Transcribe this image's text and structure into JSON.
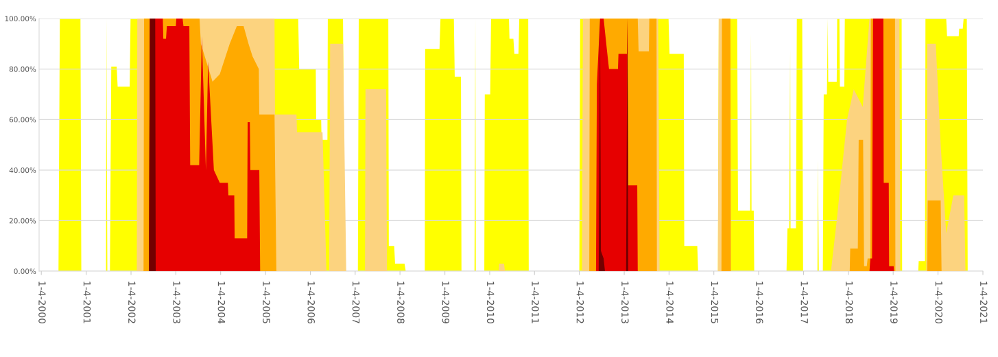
{
  "chart_data": {
    "type": "area",
    "xlim": [
      "1999-12-17",
      "2021-01-04"
    ],
    "ylim": [
      0,
      100
    ],
    "yticks": [
      {
        "value": 0,
        "label": "0.00%"
      },
      {
        "value": 20,
        "label": "20.00%"
      },
      {
        "value": 40,
        "label": "40.00%"
      },
      {
        "value": 60,
        "label": "60.00%"
      },
      {
        "value": 80,
        "label": "80.00%"
      },
      {
        "value": 100,
        "label": "100.00%"
      }
    ],
    "xticks": [
      {
        "value": "2000-01-04",
        "label": "1-4-2000"
      },
      {
        "value": "2001-01-04",
        "label": "1-4-2001"
      },
      {
        "value": "2002-01-04",
        "label": "1-4-2002"
      },
      {
        "value": "2003-01-04",
        "label": "1-4-2003"
      },
      {
        "value": "2004-01-04",
        "label": "1-4-2004"
      },
      {
        "value": "2005-01-04",
        "label": "1-4-2005"
      },
      {
        "value": "2006-01-04",
        "label": "1-4-2006"
      },
      {
        "value": "2007-01-04",
        "label": "1-4-2007"
      },
      {
        "value": "2008-01-04",
        "label": "1-4-2008"
      },
      {
        "value": "2009-01-04",
        "label": "1-4-2009"
      },
      {
        "value": "2010-01-04",
        "label": "1-4-2010"
      },
      {
        "value": "2011-01-04",
        "label": "1-4-2011"
      },
      {
        "value": "2012-01-04",
        "label": "1-4-2012"
      },
      {
        "value": "2013-01-04",
        "label": "1-4-2013"
      },
      {
        "value": "2014-01-04",
        "label": "1-4-2014"
      },
      {
        "value": "2015-01-04",
        "label": "1-4-2015"
      },
      {
        "value": "2016-01-04",
        "label": "1-4-2016"
      },
      {
        "value": "2017-01-04",
        "label": "1-4-2017"
      },
      {
        "value": "2018-01-04",
        "label": "1-4-2018"
      },
      {
        "value": "2019-01-04",
        "label": "1-4-2019"
      },
      {
        "value": "2020-01-04",
        "label": "1-4-2020"
      },
      {
        "value": "2021-01-04",
        "label": "1-4-2021"
      }
    ],
    "grid": "y",
    "legend": false,
    "series": [
      {
        "color": "#ffff00",
        "x": [
          "2000-05-23",
          "2000-06-03",
          "2000-11-18",
          "2000-11-25",
          "2001-06-14",
          "2001-06-17",
          "2001-06-25",
          "2001-07-16",
          "2001-07-27",
          "2001-09-09",
          "2001-09-17",
          "2001-12-24",
          "2001-12-31",
          "2005-09-27",
          "2005-10-05",
          "2006-02-17",
          "2006-02-20",
          "2006-04-02",
          "2006-04-05",
          "2006-05-23",
          "2006-05-26",
          "2006-09-27",
          "2006-10-12",
          "2007-01-26",
          "2007-02-02",
          "2007-10-01",
          "2007-10-05",
          "2007-11-18",
          "2007-11-25",
          "2008-02-10",
          "2008-02-20",
          "2008-07-24",
          "2008-07-27",
          "2008-11-21",
          "2008-11-29",
          "2009-03-18",
          "2009-03-25",
          "2009-05-15",
          "2009-05-19",
          "2009-09-02",
          "2009-09-09",
          "2009-09-13",
          "2009-11-21",
          "2009-11-25",
          "2010-01-08",
          "2010-01-15",
          "2010-06-10",
          "2010-06-14",
          "2010-07-16",
          "2010-07-24",
          "2010-08-26",
          "2010-09-02",
          "2010-11-14",
          "2010-11-18",
          "2012-01-04",
          "2012-01-11",
          "2013-12-31",
          "2014-01-08",
          "2014-05-04",
          "2014-05-08",
          "2014-08-22",
          "2014-08-29",
          "2015-02-06",
          "2015-02-13",
          "2015-07-13",
          "2015-07-20",
          "2015-10-27",
          "2015-11-03",
          "2015-11-07",
          "2015-11-25",
          "2015-11-29",
          "2016-08-18",
          "2016-08-26",
          "2016-09-09",
          "2016-09-17",
          "2016-09-20",
          "2016-11-03",
          "2016-11-10",
          "2016-12-24",
          "2016-12-31",
          "2017-04-27",
          "2017-05-01",
          "2017-05-08",
          "2017-06-10",
          "2017-06-17",
          "2017-07-13",
          "2017-07-20",
          "2017-07-24",
          "2017-10-01",
          "2017-10-05",
          "2017-10-23",
          "2017-10-27",
          "2017-12-02",
          "2017-12-06",
          "2019-03-14",
          "2019-03-18",
          "2019-07-27",
          "2019-07-31",
          "2019-09-20",
          "2019-09-24",
          "2020-03-11",
          "2020-03-18",
          "2020-06-21",
          "2020-06-25",
          "2020-07-24",
          "2020-07-31",
          "2020-08-26",
          "2020-09-02"
        ],
        "values": [
          0,
          100,
          100,
          0,
          0,
          100,
          0,
          0,
          81,
          81,
          73,
          73,
          100,
          100,
          80,
          80,
          60,
          60,
          52,
          52,
          100,
          100,
          0,
          0,
          100,
          100,
          10,
          10,
          3,
          3,
          0,
          0,
          88,
          88,
          100,
          100,
          77,
          77,
          0,
          0,
          100,
          0,
          0,
          70,
          70,
          100,
          100,
          92,
          92,
          86,
          86,
          100,
          100,
          0,
          0,
          100,
          100,
          86,
          86,
          10,
          10,
          0,
          0,
          100,
          100,
          24,
          24,
          94,
          24,
          24,
          0,
          0,
          17,
          17,
          88,
          17,
          17,
          100,
          100,
          0,
          0,
          44,
          0,
          0,
          70,
          70,
          100,
          75,
          75,
          100,
          100,
          73,
          73,
          100,
          100,
          0,
          0,
          4,
          4,
          100,
          100,
          93,
          93,
          96,
          96,
          100,
          100,
          0
        ]
      },
      {
        "color": "#fcd37f",
        "x": [
          "2002-02-20",
          "2002-02-24",
          "2005-03-18",
          "2005-03-22",
          "2005-09-13",
          "2005-09-17",
          "2006-04-13",
          "2006-05-15",
          "2006-06-06",
          "2006-06-14",
          "2006-09-27",
          "2006-10-23",
          "2007-03-25",
          "2007-03-29",
          "2007-09-13",
          "2007-09-20",
          "2010-03-18",
          "2010-03-22",
          "2010-05-01",
          "2010-05-08",
          "2012-01-26",
          "2012-02-02",
          "2013-10-08",
          "2013-10-19",
          "2015-02-06",
          "2015-02-13",
          "2015-05-19",
          "2015-05-23",
          "2017-08-15",
          "2017-10-01",
          "2017-12-24",
          "2018-02-17",
          "2018-05-01",
          "2018-06-25",
          "2019-02-24",
          "2019-03-03",
          "2019-10-01",
          "2019-10-08",
          "2019-12-17",
          "2020-01-26",
          "2020-03-11",
          "2020-05-08",
          "2020-08-04",
          "2020-08-15"
        ],
        "values": [
          0,
          100,
          100,
          62,
          62,
          55,
          55,
          0,
          0,
          90,
          90,
          0,
          0,
          72,
          72,
          0,
          0,
          3,
          3,
          0,
          0,
          100,
          100,
          0,
          0,
          100,
          100,
          0,
          0,
          20,
          60,
          72,
          65,
          100,
          100,
          0,
          0,
          90,
          90,
          50,
          15,
          30,
          30,
          0
        ]
      },
      {
        "color": "#ffaa00",
        "x": [
          "2002-04-16",
          "2002-04-20",
          "2003-07-16",
          "2003-07-27",
          "2003-10-30",
          "2003-12-28",
          "2004-03-18",
          "2004-05-15",
          "2004-07-09",
          "2004-08-18",
          "2004-09-20",
          "2004-11-10",
          "2004-11-14",
          "2005-03-18",
          "2005-04-02",
          "2012-03-25",
          "2012-03-29",
          "2013-04-24",
          "2013-05-01",
          "2013-07-24",
          "2013-07-27",
          "2013-09-24",
          "2013-09-27",
          "2015-03-07",
          "2015-03-11",
          "2015-05-19",
          "2015-05-23",
          "2018-01-15",
          "2018-01-19",
          "2018-03-22",
          "2018-03-29",
          "2018-05-04",
          "2018-05-12",
          "2018-06-03",
          "2018-06-10",
          "2018-07-02",
          "2018-07-06",
          "2019-01-19",
          "2019-01-22",
          "2019-10-08",
          "2019-10-12",
          "2020-01-26",
          "2020-02-02"
        ],
        "values": [
          0,
          100,
          100,
          90,
          75,
          78,
          90,
          97,
          97,
          90,
          85,
          80,
          62,
          62,
          0,
          0,
          100,
          100,
          87,
          87,
          100,
          100,
          0,
          0,
          100,
          100,
          0,
          0,
          9,
          9,
          52,
          52,
          2,
          2,
          5,
          5,
          100,
          100,
          0,
          0,
          28,
          28,
          0
        ]
      },
      {
        "color": "#e60000",
        "x": [
          "2002-05-30",
          "2002-06-06",
          "2002-09-20",
          "2002-09-24",
          "2002-10-16",
          "2002-10-23",
          "2003-01-04",
          "2003-01-08",
          "2003-02-28",
          "2003-03-07",
          "2003-04-24",
          "2003-05-01",
          "2003-07-13",
          "2003-08-04",
          "2003-09-06",
          "2003-09-24",
          "2003-11-10",
          "2003-12-28",
          "2004-03-03",
          "2004-03-07",
          "2004-04-24",
          "2004-04-27",
          "2004-08-07",
          "2004-08-11",
          "2004-08-29",
          "2004-09-02",
          "2004-11-14",
          "2004-11-21",
          "2012-05-19",
          "2012-05-26",
          "2012-06-21",
          "2012-07-20",
          "2012-08-15",
          "2012-09-02",
          "2012-11-14",
          "2012-11-18",
          "2013-01-26",
          "2013-01-30",
          "2013-02-06",
          "2013-04-20",
          "2013-04-24",
          "2018-06-25",
          "2018-07-02",
          "2018-07-16",
          "2018-07-24",
          "2018-10-16",
          "2018-10-19",
          "2018-11-29",
          "2018-12-02",
          "2019-01-08",
          "2019-01-11"
        ],
        "values": [
          0,
          100,
          100,
          92,
          92,
          97,
          97,
          100,
          100,
          97,
          97,
          42,
          42,
          93,
          40,
          83,
          40,
          35,
          35,
          30,
          30,
          13,
          13,
          59,
          59,
          40,
          40,
          0,
          0,
          74,
          100,
          100,
          88,
          80,
          80,
          86,
          86,
          100,
          34,
          34,
          0,
          0,
          5,
          5,
          100,
          100,
          35,
          35,
          2,
          2,
          0
        ]
      },
      {
        "color": "#730000",
        "x": [
          "2002-05-30",
          "2002-06-06",
          "2002-07-20",
          "2002-07-24",
          "2012-06-10",
          "2012-06-21",
          "2012-06-28",
          "2012-07-20",
          "2012-07-31",
          "2013-01-19",
          "2013-01-30",
          "2013-02-06"
        ],
        "values": [
          0,
          100,
          100,
          0,
          0,
          100,
          8,
          5,
          0,
          0,
          100,
          0
        ]
      }
    ]
  }
}
